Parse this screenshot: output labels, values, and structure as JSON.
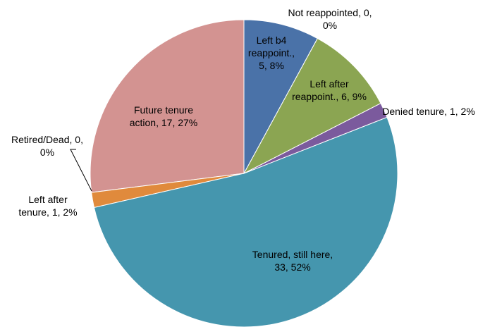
{
  "chart_data": {
    "type": "pie",
    "values": [
      0,
      5,
      6,
      1,
      33,
      1,
      0,
      17
    ],
    "value_labels": [
      "Not reappointed, 0, 0%",
      "Left b4 reappoint., 5, 8%",
      "Left after reappoint., 6, 9%",
      "Denied tenure, 1, 2%",
      "Tenured, still here, 33, 52%",
      "Left after tenure, 1, 2%",
      "Retired/Dead, 0, 0%",
      "Future tenure action, 17, 27%"
    ],
    "colors": [
      "#4a72a8",
      "#4a72a8",
      "#8ba552",
      "#7b5a9d",
      "#4596ae",
      "#e08a3c",
      "#7f7f7f",
      "#d39391"
    ]
  }
}
